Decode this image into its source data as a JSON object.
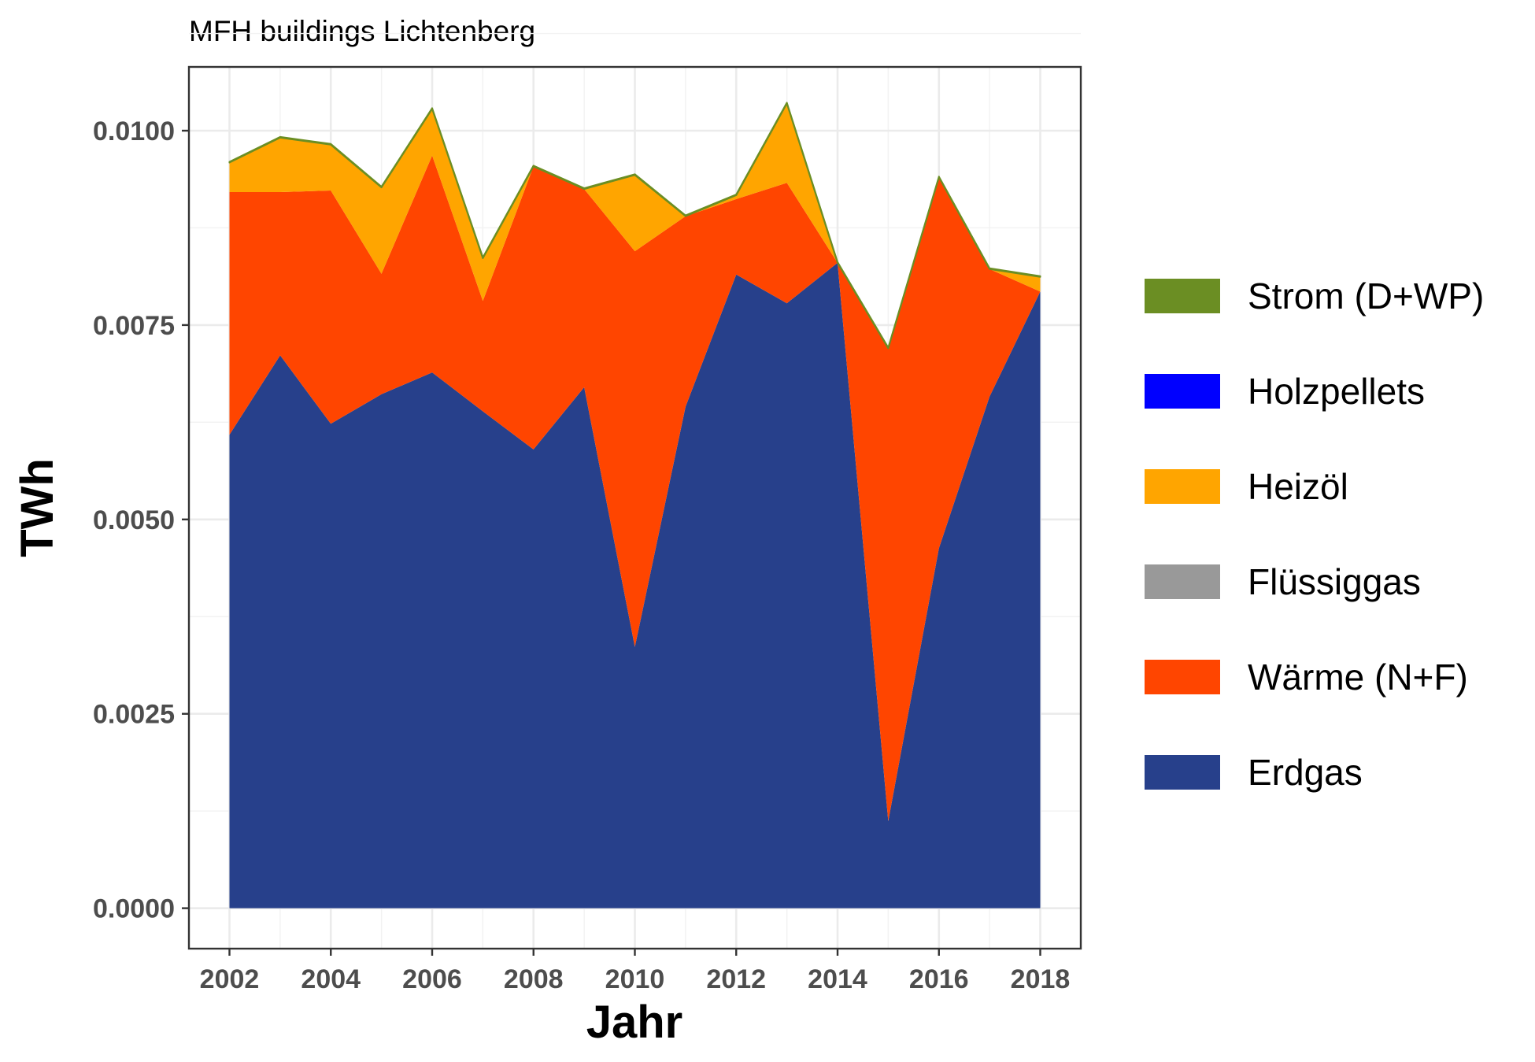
{
  "chart_data": {
    "type": "area",
    "stacked": true,
    "title": "MFH buildings Lichtenberg",
    "xlabel": "Jahr",
    "ylabel": "TWh",
    "x": [
      2002,
      2003,
      2004,
      2005,
      2006,
      2007,
      2008,
      2009,
      2010,
      2011,
      2012,
      2013,
      2014,
      2015,
      2016,
      2017,
      2018
    ],
    "xlim": [
      2001.2,
      2018.8
    ],
    "ylim": [
      -0.00052,
      0.01082
    ],
    "x_ticks": [
      2002,
      2004,
      2006,
      2008,
      2010,
      2012,
      2014,
      2016,
      2018
    ],
    "x_tick_labels": [
      "2002",
      "2004",
      "2006",
      "2008",
      "2010",
      "2012",
      "2014",
      "2016",
      "2018"
    ],
    "y_ticks": [
      0.0,
      0.0025,
      0.005,
      0.0075,
      0.01
    ],
    "y_tick_labels": [
      "0.0000",
      "0.0025",
      "0.0050",
      "0.0075",
      "0.0100"
    ],
    "grid": true,
    "legend_position": "right",
    "series": [
      {
        "name": "Erdgas",
        "color": "#27408b",
        "values": [
          0.00609,
          0.00711,
          0.00623,
          0.00661,
          0.00689,
          0.00639,
          0.0059,
          0.0067,
          0.00336,
          0.00645,
          0.00815,
          0.00778,
          0.0083,
          0.00112,
          0.00463,
          0.00658,
          0.00793
        ]
      },
      {
        "name": "Wärme (N+F)",
        "color": "#ff4500",
        "values": [
          0.00312,
          0.0021,
          0.003,
          0.00155,
          0.00279,
          0.00142,
          0.00364,
          0.00255,
          0.00509,
          0.00245,
          0.00097,
          0.00155,
          0.0,
          0.00608,
          0.00477,
          0.00164,
          0.0
        ]
      },
      {
        "name": "Flüssiggas",
        "color": "#999999",
        "values": [
          0,
          0,
          0,
          0,
          0,
          0,
          0,
          0,
          0,
          0,
          0,
          0,
          0,
          0,
          0,
          0,
          0
        ]
      },
      {
        "name": "Heizöl",
        "color": "#ffa500",
        "values": [
          0.00038,
          0.0007,
          0.00059,
          0.00111,
          0.0006,
          0.00055,
          0.0,
          0.0,
          0.00098,
          0.0,
          5e-05,
          0.00102,
          0.0,
          0.0,
          0.0,
          0.0,
          0.00019
        ]
      },
      {
        "name": "Holzpellets",
        "color": "#0000ff",
        "values": [
          0,
          0,
          0,
          0,
          0,
          0,
          0,
          0,
          0,
          0,
          0,
          0,
          0,
          0,
          0,
          0,
          0
        ]
      },
      {
        "name": "Strom (D+WP)",
        "color": "#6b8e23",
        "values": [
          1e-05,
          1e-05,
          1e-05,
          1e-05,
          1e-05,
          1e-05,
          1e-05,
          1e-05,
          1e-05,
          1e-05,
          1e-05,
          1e-05,
          1e-05,
          1e-05,
          1e-05,
          1e-05,
          1e-05
        ]
      }
    ],
    "legend_order": [
      "Strom (D+WP)",
      "Holzpellets",
      "Heizöl",
      "Flüssiggas",
      "Wärme (N+F)",
      "Erdgas"
    ]
  }
}
